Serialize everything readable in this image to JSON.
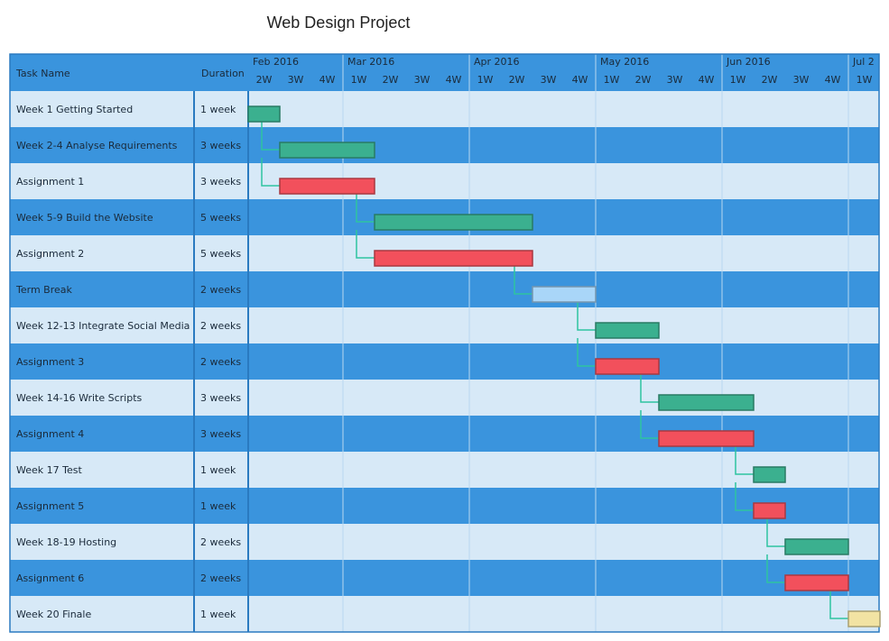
{
  "chart_data": {
    "type": "gantt",
    "title": "Web Design Project",
    "columns": [
      "Task Name",
      "Duration"
    ],
    "x": [
      "2W",
      "3W",
      "4W",
      "1W",
      "2W",
      "3W",
      "4W",
      "1W",
      "2W",
      "3W",
      "4W",
      "1W",
      "2W",
      "3W",
      "4W",
      "1W",
      "2W",
      "3W",
      "4W",
      "1W"
    ],
    "months": [
      {
        "label": "Feb 2016",
        "week": 0
      },
      {
        "label": "Mar 2016",
        "week": 3
      },
      {
        "label": "Apr 2016",
        "week": 7
      },
      {
        "label": "May 2016",
        "week": 11
      },
      {
        "label": "Jun 2016",
        "week": 15
      },
      {
        "label": "Jul 2",
        "week": 19
      }
    ],
    "tasks": [
      {
        "name": "Week 1 Getting Started",
        "duration": "1 week",
        "start": 0,
        "length": 1,
        "color": "#3bb08f"
      },
      {
        "name": "Week 2-4 Analyse Requirements",
        "duration": "3 weeks",
        "start": 1,
        "length": 3,
        "color": "#3bb08f"
      },
      {
        "name": "Assignment 1",
        "duration": "3 weeks",
        "start": 1,
        "length": 3,
        "color": "#f2505c"
      },
      {
        "name": "Week 5-9 Build the Website",
        "duration": "5 weeks",
        "start": 4,
        "length": 5,
        "color": "#3bb08f"
      },
      {
        "name": "Assignment 2",
        "duration": "5 weeks",
        "start": 4,
        "length": 5,
        "color": "#f2505c"
      },
      {
        "name": "Term Break",
        "duration": "2 weeks",
        "start": 9,
        "length": 2,
        "color": "#a9d6f8"
      },
      {
        "name": "Week 12-13 Integrate Social Media",
        "duration": "2 weeks",
        "start": 11,
        "length": 2,
        "color": "#3bb08f"
      },
      {
        "name": "Assignment 3",
        "duration": "2 weeks",
        "start": 11,
        "length": 2,
        "color": "#f2505c"
      },
      {
        "name": "Week 14-16 Write Scripts",
        "duration": "3 weeks",
        "start": 13,
        "length": 3,
        "color": "#3bb08f"
      },
      {
        "name": "Assignment 4",
        "duration": "3 weeks",
        "start": 13,
        "length": 3,
        "color": "#f2505c"
      },
      {
        "name": "Week 17 Test",
        "duration": "1 week",
        "start": 16,
        "length": 1,
        "color": "#3bb08f"
      },
      {
        "name": "Assignment 5",
        "duration": "1 week",
        "start": 16,
        "length": 1,
        "color": "#f2505c"
      },
      {
        "name": "Week 18-19 Hosting",
        "duration": "2 weeks",
        "start": 17,
        "length": 2,
        "color": "#3bb08f"
      },
      {
        "name": "Assignment 6",
        "duration": "2 weeks",
        "start": 17,
        "length": 2,
        "color": "#f2505c"
      },
      {
        "name": "Week 20 Finale",
        "duration": "1 week",
        "start": 19,
        "length": 1,
        "color": "#f2e3a3"
      }
    ]
  }
}
